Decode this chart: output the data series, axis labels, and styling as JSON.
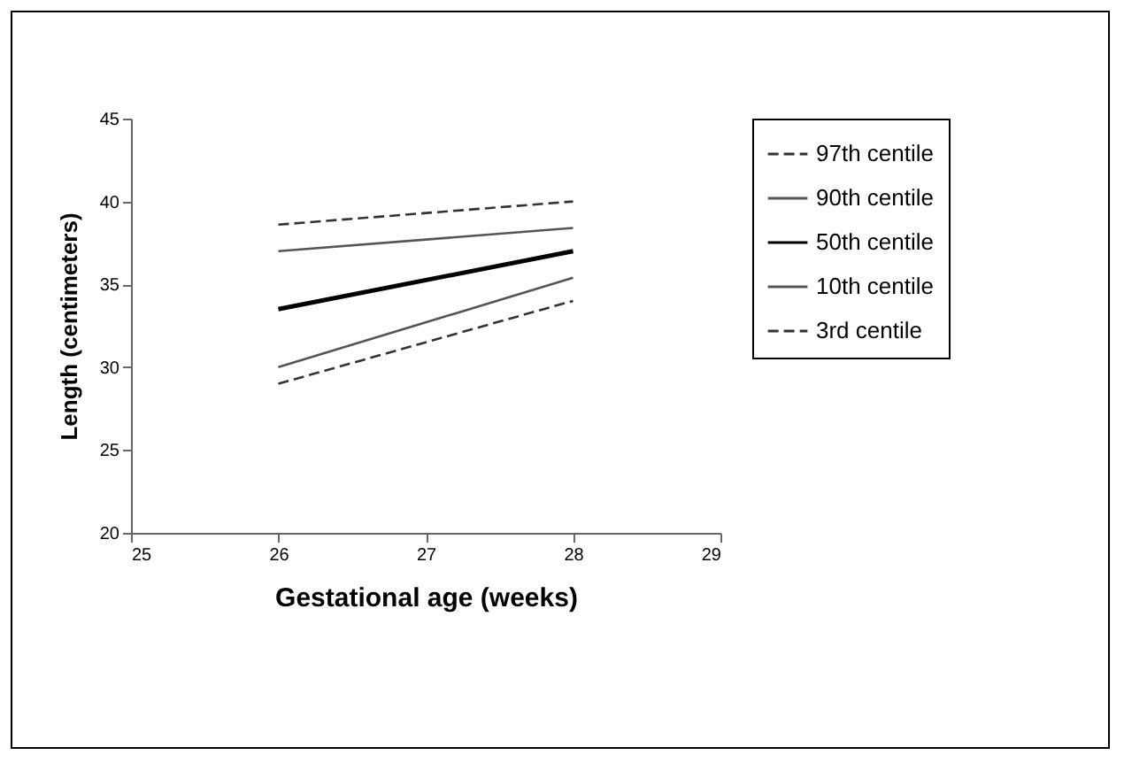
{
  "chart_data": {
    "type": "line",
    "xlabel": "Gestational age (weeks)",
    "ylabel": "Length (centimeters)",
    "x": [
      26,
      28
    ],
    "xlim": [
      25,
      29
    ],
    "xticks": [
      25,
      26,
      27,
      28,
      29
    ],
    "ylim": [
      20,
      45
    ],
    "yticks": [
      20,
      25,
      30,
      35,
      40,
      45
    ],
    "grid": false,
    "legend": "right",
    "marker": "none",
    "series": [
      {
        "name": "97th centile",
        "color": "#333333",
        "line_style": "dashed",
        "values": [
          38.6,
          40
        ]
      },
      {
        "name": "90th centile",
        "color": "#555555",
        "line_style": "solid",
        "values": [
          37,
          38.4
        ]
      },
      {
        "name": "50th centile",
        "color": "#000000",
        "line_style": "solid",
        "values": [
          33.5,
          37
        ]
      },
      {
        "name": "10th centile",
        "color": "#555555",
        "line_style": "solid",
        "values": [
          30,
          35.4
        ]
      },
      {
        "name": "3rd centile",
        "color": "#333333",
        "line_style": "dashed",
        "values": [
          29,
          34
        ]
      }
    ]
  }
}
